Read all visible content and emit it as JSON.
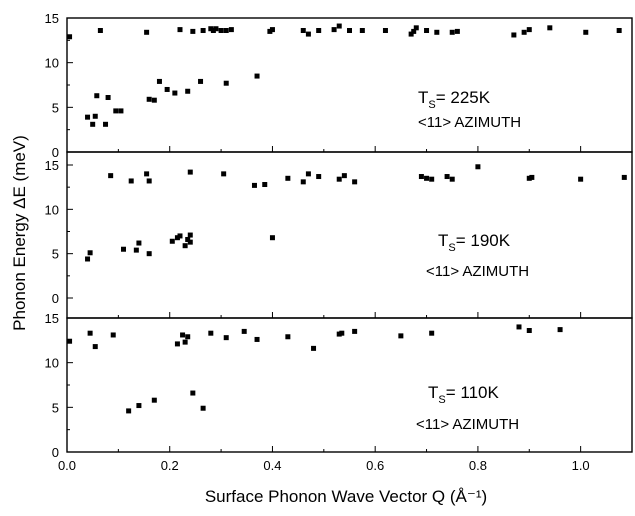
{
  "chart_data": {
    "type": "scatter",
    "xlabel": "Surface Phonon Wave Vector Q (Å⁻¹)",
    "ylabel": "Phonon Energy ΔE  (meV)",
    "xlim": [
      0,
      1.1
    ],
    "ylim": [
      0,
      15
    ],
    "x_ticks": [
      "0.0",
      "0.2",
      "0.4",
      "0.6",
      "0.8",
      "1.0"
    ],
    "y_ticks": [
      "0",
      "5",
      "10",
      "15"
    ],
    "grid": false,
    "panels": [
      {
        "temperature": "= 225K",
        "azimuth": "<11> AZIMUTH",
        "points": [
          [
            0.005,
            12.9
          ],
          [
            0.065,
            13.6
          ],
          [
            0.155,
            13.4
          ],
          [
            0.22,
            13.7
          ],
          [
            0.245,
            13.5
          ],
          [
            0.265,
            13.6
          ],
          [
            0.28,
            13.8
          ],
          [
            0.285,
            13.6
          ],
          [
            0.29,
            13.8
          ],
          [
            0.3,
            13.6
          ],
          [
            0.31,
            13.6
          ],
          [
            0.32,
            13.7
          ],
          [
            0.395,
            13.5
          ],
          [
            0.4,
            13.7
          ],
          [
            0.46,
            13.6
          ],
          [
            0.47,
            13.2
          ],
          [
            0.49,
            13.6
          ],
          [
            0.52,
            13.7
          ],
          [
            0.53,
            14.1
          ],
          [
            0.55,
            13.6
          ],
          [
            0.575,
            13.6
          ],
          [
            0.62,
            13.6
          ],
          [
            0.67,
            13.2
          ],
          [
            0.675,
            13.5
          ],
          [
            0.68,
            13.9
          ],
          [
            0.7,
            13.6
          ],
          [
            0.72,
            13.4
          ],
          [
            0.75,
            13.4
          ],
          [
            0.76,
            13.5
          ],
          [
            0.87,
            13.1
          ],
          [
            0.89,
            13.4
          ],
          [
            0.9,
            13.7
          ],
          [
            0.94,
            13.9
          ],
          [
            1.01,
            13.4
          ],
          [
            1.075,
            13.6
          ],
          [
            0.04,
            3.9
          ],
          [
            0.05,
            3.1
          ],
          [
            0.055,
            4.0
          ],
          [
            0.058,
            6.3
          ],
          [
            0.075,
            3.1
          ],
          [
            0.08,
            6.1
          ],
          [
            0.095,
            4.6
          ],
          [
            0.105,
            4.6
          ],
          [
            0.16,
            5.9
          ],
          [
            0.17,
            5.8
          ],
          [
            0.18,
            7.9
          ],
          [
            0.195,
            7.0
          ],
          [
            0.21,
            6.6
          ],
          [
            0.235,
            6.8
          ],
          [
            0.26,
            7.9
          ],
          [
            0.31,
            7.7
          ],
          [
            0.37,
            8.5
          ]
        ]
      },
      {
        "temperature": "= 190K",
        "azimuth": "<11> AZIMUTH",
        "points": [
          [
            0.085,
            13.8
          ],
          [
            0.125,
            13.2
          ],
          [
            0.155,
            14.0
          ],
          [
            0.16,
            13.2
          ],
          [
            0.24,
            14.2
          ],
          [
            0.305,
            14.0
          ],
          [
            0.365,
            12.7
          ],
          [
            0.385,
            12.8
          ],
          [
            0.43,
            13.5
          ],
          [
            0.46,
            13.1
          ],
          [
            0.47,
            14.0
          ],
          [
            0.49,
            13.7
          ],
          [
            0.53,
            13.4
          ],
          [
            0.54,
            13.8
          ],
          [
            0.56,
            13.1
          ],
          [
            0.69,
            13.7
          ],
          [
            0.7,
            13.5
          ],
          [
            0.71,
            13.4
          ],
          [
            0.74,
            13.7
          ],
          [
            0.75,
            13.4
          ],
          [
            0.8,
            14.8
          ],
          [
            0.9,
            13.5
          ],
          [
            0.905,
            13.6
          ],
          [
            1.0,
            13.4
          ],
          [
            1.085,
            13.6
          ],
          [
            0.04,
            4.4
          ],
          [
            0.045,
            5.1
          ],
          [
            0.11,
            5.5
          ],
          [
            0.135,
            5.4
          ],
          [
            0.14,
            6.2
          ],
          [
            0.16,
            5.0
          ],
          [
            0.205,
            6.4
          ],
          [
            0.215,
            6.8
          ],
          [
            0.22,
            7.0
          ],
          [
            0.23,
            5.9
          ],
          [
            0.235,
            6.6
          ],
          [
            0.24,
            6.3
          ],
          [
            0.24,
            7.1
          ],
          [
            0.4,
            6.8
          ]
        ]
      },
      {
        "temperature": "= 110K",
        "azimuth": "<11> AZIMUTH",
        "points": [
          [
            0.005,
            12.4
          ],
          [
            0.045,
            13.3
          ],
          [
            0.055,
            11.8
          ],
          [
            0.09,
            13.1
          ],
          [
            0.215,
            12.1
          ],
          [
            0.225,
            13.1
          ],
          [
            0.23,
            12.3
          ],
          [
            0.235,
            12.9
          ],
          [
            0.28,
            13.3
          ],
          [
            0.31,
            12.8
          ],
          [
            0.345,
            13.5
          ],
          [
            0.37,
            12.6
          ],
          [
            0.43,
            12.9
          ],
          [
            0.48,
            11.6
          ],
          [
            0.53,
            13.2
          ],
          [
            0.535,
            13.3
          ],
          [
            0.56,
            13.5
          ],
          [
            0.65,
            13.0
          ],
          [
            0.71,
            13.3
          ],
          [
            0.88,
            14.0
          ],
          [
            0.9,
            13.6
          ],
          [
            0.96,
            13.7
          ],
          [
            0.12,
            4.6
          ],
          [
            0.14,
            5.2
          ],
          [
            0.17,
            5.8
          ],
          [
            0.245,
            6.6
          ],
          [
            0.265,
            4.9
          ]
        ]
      }
    ]
  }
}
